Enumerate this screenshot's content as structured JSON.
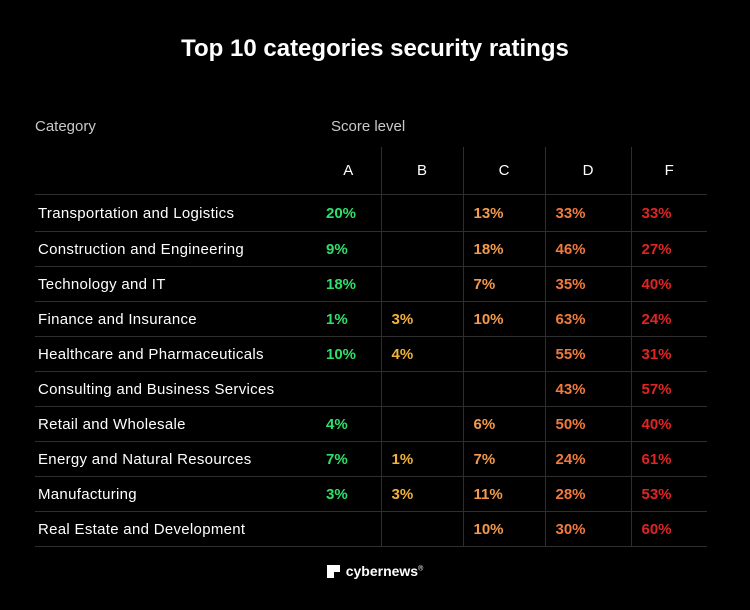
{
  "title": "Top 10 categories security ratings",
  "header": {
    "category": "Category",
    "score_level": "Score level"
  },
  "chart_data": {
    "type": "table",
    "title": "Top 10 categories security ratings",
    "columns": [
      "A",
      "B",
      "C",
      "D",
      "F"
    ],
    "rows": [
      {
        "category": "Transportation and Logistics",
        "values": [
          "20%",
          "",
          "13%",
          "33%",
          "33%"
        ]
      },
      {
        "category": "Construction and Engineering",
        "values": [
          "9%",
          "",
          "18%",
          "46%",
          "27%"
        ]
      },
      {
        "category": "Technology and IT",
        "values": [
          "18%",
          "",
          "7%",
          "35%",
          "40%"
        ]
      },
      {
        "category": "Finance and Insurance",
        "values": [
          "1%",
          "3%",
          "10%",
          "63%",
          "24%"
        ]
      },
      {
        "category": "Healthcare and Pharmaceuticals",
        "values": [
          "10%",
          "4%",
          "",
          "55%",
          "31%"
        ]
      },
      {
        "category": "Consulting and Business Services",
        "values": [
          "",
          "",
          "",
          "43%",
          "57%"
        ]
      },
      {
        "category": "Retail and Wholesale",
        "values": [
          "4%",
          "",
          "6%",
          "50%",
          "40%"
        ]
      },
      {
        "category": "Energy and Natural Resources",
        "values": [
          "7%",
          "1%",
          "7%",
          "24%",
          "61%"
        ]
      },
      {
        "category": "Manufacturing",
        "values": [
          "3%",
          "3%",
          "11%",
          "28%",
          "53%"
        ]
      },
      {
        "category": "Real Estate and Development",
        "values": [
          "",
          "",
          "10%",
          "30%",
          "60%"
        ]
      }
    ],
    "column_colors": {
      "A": "#2ee06a",
      "B": "#f2b23a",
      "C": "#f49a4c",
      "D": "#f27a3c",
      "F": "#e02424"
    }
  },
  "brand": {
    "name": "cybernews",
    "mark": "®"
  }
}
